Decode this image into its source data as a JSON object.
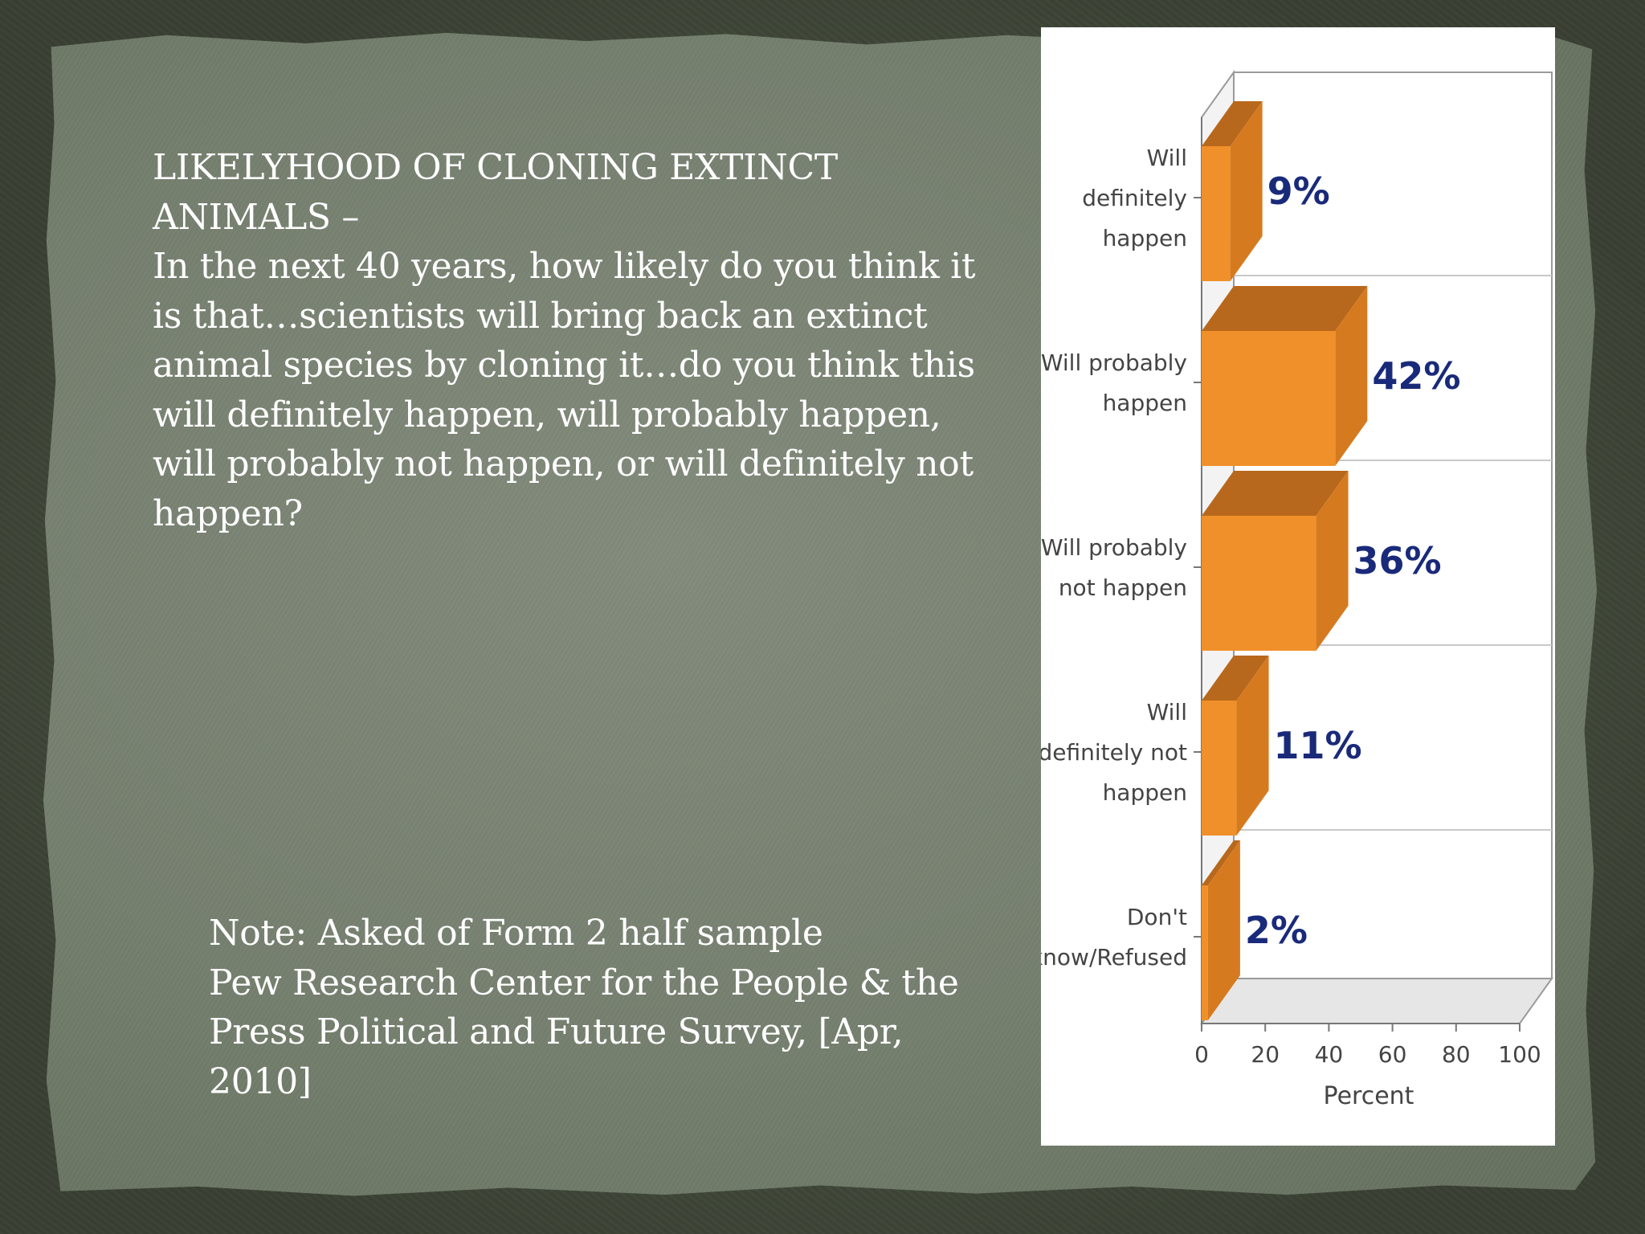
{
  "slide": {
    "title_lines": [
      "LIKELYHOOD OF CLONING EXTINCT",
      "ANIMALS –"
    ],
    "question_lines": [
      "In the next 40 years, how likely do you think it",
      "is that…scientists will bring back an extinct",
      "animal species by cloning it…do you think this",
      "will definitely happen, will probably happen,",
      "will probably not happen, or will definitely not",
      "happen?"
    ],
    "note_lines": [
      "Note: Asked of Form 2 half sample",
      "Pew Research Center for the People & the",
      "Press Political and Future Survey, [Apr,",
      "2010]"
    ]
  },
  "colors": {
    "bar_front": "#f0902a",
    "bar_top": "#b8681c",
    "bar_side": "#d67a20",
    "data_label": "#1a2a7a",
    "axis_text": "#444444"
  },
  "chart_data": {
    "type": "bar",
    "orientation": "horizontal",
    "style": "3d",
    "categories": [
      [
        "Will",
        "definitely",
        "happen"
      ],
      [
        "Will probably",
        "happen"
      ],
      [
        "Will probably",
        "not happen"
      ],
      [
        "Will",
        "definitely not",
        "happen"
      ],
      [
        "Don't",
        "know/Refused"
      ]
    ],
    "values": [
      9,
      42,
      36,
      11,
      2
    ],
    "data_labels": [
      "9%",
      "42%",
      "36%",
      "11%",
      "2%"
    ],
    "xlabel": "Percent",
    "xlim": [
      0,
      100
    ],
    "xticks": [
      "0",
      "20",
      "40",
      "60",
      "80",
      "100"
    ],
    "grid": true
  }
}
